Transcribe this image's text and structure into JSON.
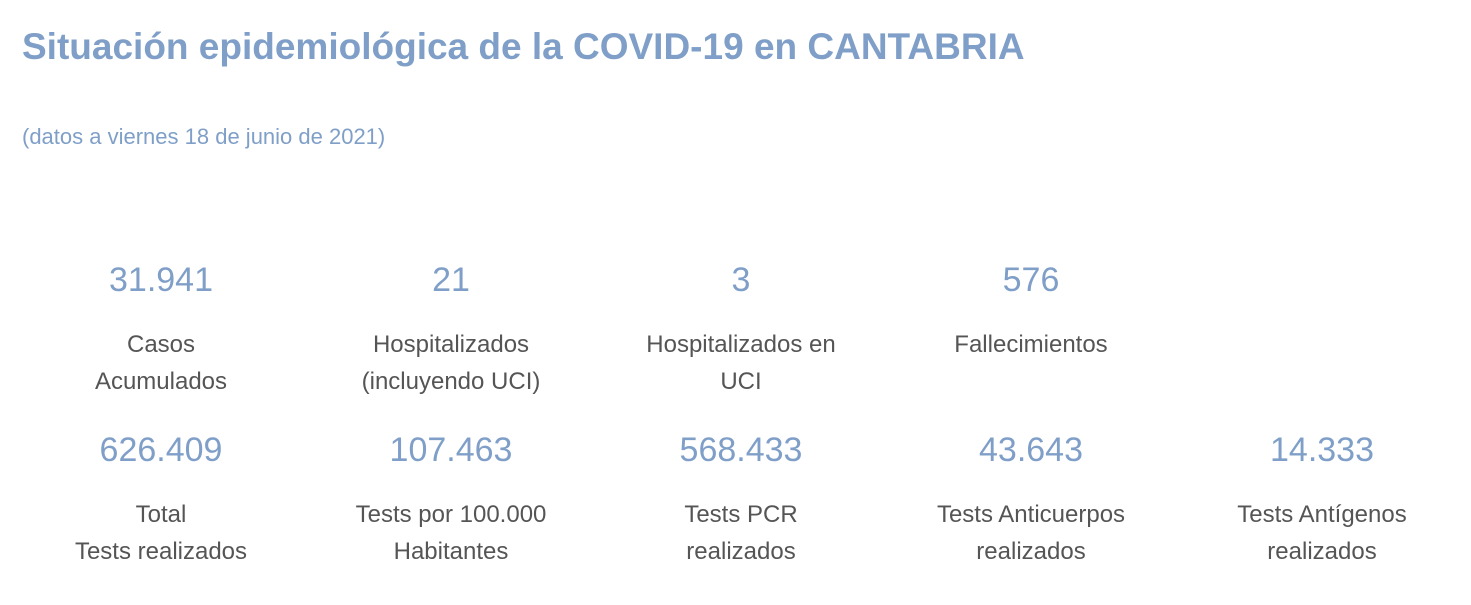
{
  "header": {
    "title": "Situación epidemiológica de la COVID-19 en CANTABRIA",
    "subtitle": "(datos a viernes 18 de junio de 2021)"
  },
  "stats_row1": [
    {
      "value": "31.941",
      "label_line1": "Casos",
      "label_line2": "Acumulados"
    },
    {
      "value": "21",
      "label_line1": "Hospitalizados",
      "label_line2": "(incluyendo UCI)"
    },
    {
      "value": "3",
      "label_line1": "Hospitalizados en",
      "label_line2": "UCI"
    },
    {
      "value": "576",
      "label_line1": "Fallecimientos",
      "label_line2": ""
    }
  ],
  "stats_row2": [
    {
      "value": "626.409",
      "label_line1": "Total",
      "label_line2": "Tests realizados"
    },
    {
      "value": "107.463",
      "label_line1": "Tests por 100.000",
      "label_line2": "Habitantes"
    },
    {
      "value": "568.433",
      "label_line1": "Tests PCR",
      "label_line2": "realizados"
    },
    {
      "value": "43.643",
      "label_line1": "Tests Anticuerpos",
      "label_line2": "realizados"
    },
    {
      "value": "14.333",
      "label_line1": "Tests Antígenos",
      "label_line2": "realizados"
    }
  ]
}
